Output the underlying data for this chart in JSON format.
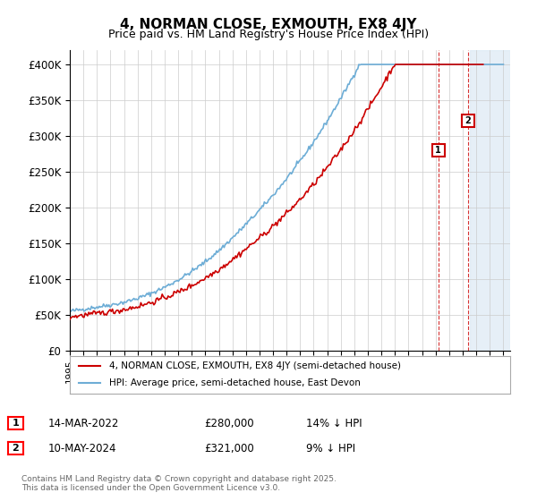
{
  "title": "4, NORMAN CLOSE, EXMOUTH, EX8 4JY",
  "subtitle": "Price paid vs. HM Land Registry's House Price Index (HPI)",
  "ylabel_ticks": [
    "£0",
    "£50K",
    "£100K",
    "£150K",
    "£200K",
    "£250K",
    "£300K",
    "£350K",
    "£400K"
  ],
  "ytick_values": [
    0,
    50000,
    100000,
    150000,
    200000,
    250000,
    300000,
    350000,
    400000
  ],
  "ylim": [
    0,
    420000
  ],
  "xlim_start": 1995.0,
  "xlim_end": 2027.5,
  "hpi_color": "#6dadd6",
  "price_color": "#cc0000",
  "marker1_x": 2022.2,
  "marker1_y": 280000,
  "marker2_x": 2024.37,
  "marker2_y": 321000,
  "legend_entry1": "4, NORMAN CLOSE, EXMOUTH, EX8 4JY (semi-detached house)",
  "legend_entry2": "HPI: Average price, semi-detached house, East Devon",
  "table_row1": [
    "1",
    "14-MAR-2022",
    "£280,000",
    "14% ↓ HPI"
  ],
  "table_row2": [
    "2",
    "10-MAY-2024",
    "£321,000",
    "9% ↓ HPI"
  ],
  "footer": "Contains HM Land Registry data © Crown copyright and database right 2025.\nThis data is licensed under the Open Government Licence v3.0.",
  "background_color": "#ffffff",
  "grid_color": "#cccccc",
  "shaded_region_color": "#dce9f5"
}
